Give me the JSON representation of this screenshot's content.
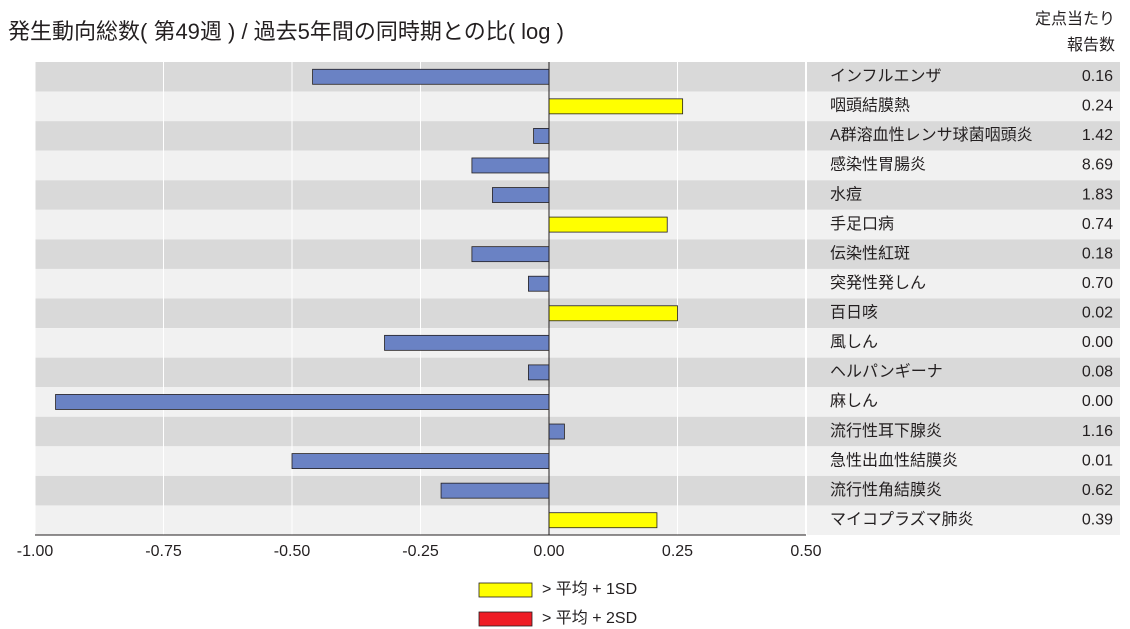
{
  "chart_data": {
    "type": "bar",
    "orientation": "horizontal",
    "title": "発生動向総数( 第49週 ) / 過去5年間の同時期との比( log )",
    "table_header": [
      "定点当たり",
      "報告数"
    ],
    "categories": [
      "インフルエンザ",
      "咽頭結膜熱",
      "A群溶血性レンサ球菌咽頭炎",
      "感染性胃腸炎",
      "水痘",
      "手足口病",
      "伝染性紅斑",
      "突発性発しん",
      "百日咳",
      "風しん",
      "ヘルパンギーナ",
      "麻しん",
      "流行性耳下腺炎",
      "急性出血性結膜炎",
      "流行性角結膜炎",
      "マイコプラズマ肺炎"
    ],
    "values": [
      -0.46,
      0.26,
      -0.03,
      -0.15,
      -0.11,
      0.23,
      -0.15,
      -0.04,
      0.25,
      -0.32,
      -0.04,
      -0.96,
      0.03,
      -0.5,
      -0.21,
      0.21
    ],
    "colors": [
      "#6a82c4",
      "#ffff00",
      "#6a82c4",
      "#6a82c4",
      "#6a82c4",
      "#ffff00",
      "#6a82c4",
      "#6a82c4",
      "#ffff00",
      "#6a82c4",
      "#6a82c4",
      "#6a82c4",
      "#6a82c4",
      "#6a82c4",
      "#6a82c4",
      "#ffff00"
    ],
    "reports": [
      "0.16",
      "0.24",
      "1.42",
      "8.69",
      "1.83",
      "0.74",
      "0.18",
      "0.70",
      "0.02",
      "0.00",
      "0.08",
      "0.00",
      "1.16",
      "0.01",
      "0.62",
      "0.39"
    ],
    "xlim": [
      -1,
      0.5
    ],
    "xticks": [
      {
        "value": -1,
        "label": "-1.00"
      },
      {
        "value": -0.75,
        "label": "-0.75"
      },
      {
        "value": -0.5,
        "label": "-0.50"
      },
      {
        "value": -0.25,
        "label": "-0.25"
      },
      {
        "value": 0,
        "label": "0.00"
      },
      {
        "value": 0.25,
        "label": "0.25"
      },
      {
        "value": 0.5,
        "label": "0.50"
      }
    ],
    "grid": true,
    "legend": [
      {
        "label": "> 平均 + 1SD",
        "color": "#ffff00"
      },
      {
        "label": "> 平均 + 2SD",
        "color": "#ee1c25"
      }
    ]
  }
}
